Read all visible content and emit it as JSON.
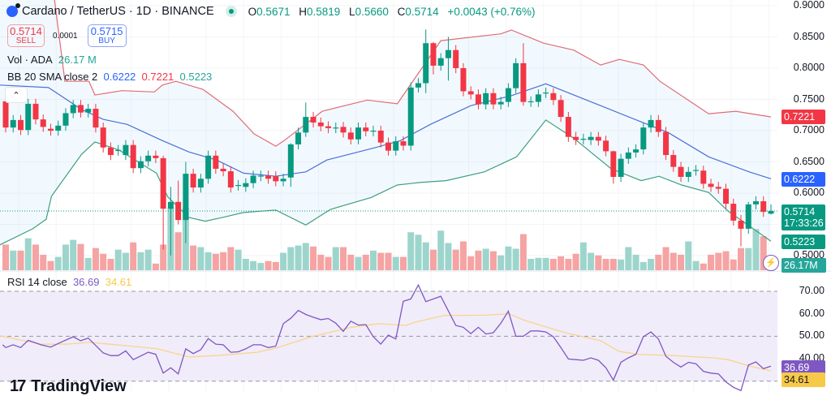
{
  "header": {
    "symbol": "Cardano / TetherUS · 1D · BINANCE",
    "ohlc": {
      "o_label": "O",
      "o": "0.5671",
      "h_label": "H",
      "h": "0.5819",
      "l_label": "L",
      "l": "0.5660",
      "c_label": "C",
      "c": "0.5714",
      "change": "+0.0043 (+0.76%)"
    }
  },
  "trade": {
    "sell_price": "0.5714",
    "sell_label": "SELL",
    "spread": "0.0001",
    "buy_price": "0.5715",
    "buy_label": "BUY"
  },
  "legend": {
    "vol_label": "Vol · ADA",
    "vol_value": "26.17 M",
    "bb_label": "BB 20 SMA close 2",
    "bb_basis": "0.6222",
    "bb_upper": "0.7221",
    "bb_lower": "0.5223",
    "rsi_label": "RSI 14 close",
    "rsi_value": "36.69",
    "rsi_ma": "34.61"
  },
  "price_axis": [
    "0.9000",
    "0.8500",
    "0.8000",
    "0.7500",
    "0.7000",
    "0.6500",
    "0.6000",
    "0.5000"
  ],
  "rsi_axis": [
    "70.00",
    "60.00",
    "50.00",
    "40.00"
  ],
  "badges": {
    "upper": "0.7221",
    "basis": "0.6222",
    "last_price": "0.5714",
    "countdown": "17:33:26",
    "lower": "0.5223",
    "volume": "26.17M",
    "rsi": "36.69",
    "rsi_ma": "34.61"
  },
  "colors": {
    "up": "#089981",
    "down": "#f23645",
    "vol_up": "#9dd5cc",
    "vol_down": "#f5a3a3",
    "bb_upper": "#e06c75",
    "bb_basis": "#4a6fd8",
    "bb_lower": "#3f9f7f",
    "rsi": "#7e57c2",
    "rsi_ma": "#f7d58a",
    "rsi_bg": "#f1ecfa"
  },
  "brand": "TradingView",
  "chart_data": {
    "type": "candlestick",
    "price_range": [
      0.48,
      0.9
    ],
    "candles_oc": [
      [
        0.747,
        0.705
      ],
      [
        0.705,
        0.717
      ],
      [
        0.717,
        0.701
      ],
      [
        0.701,
        0.743
      ],
      [
        0.743,
        0.718
      ],
      [
        0.718,
        0.706
      ],
      [
        0.703,
        0.7
      ],
      [
        0.7,
        0.708
      ],
      [
        0.708,
        0.728
      ],
      [
        0.728,
        0.741
      ],
      [
        0.741,
        0.729
      ],
      [
        0.729,
        0.735
      ],
      [
        0.735,
        0.705
      ],
      [
        0.705,
        0.673
      ],
      [
        0.673,
        0.661
      ],
      [
        0.668,
        0.669
      ],
      [
        0.661,
        0.677
      ],
      [
        0.677,
        0.64
      ],
      [
        0.64,
        0.651
      ],
      [
        0.651,
        0.66
      ],
      [
        0.66,
        0.656
      ],
      [
        0.656,
        0.575
      ],
      [
        0.575,
        0.586
      ],
      [
        0.586,
        0.557
      ],
      [
        0.557,
        0.631
      ],
      [
        0.631,
        0.609
      ],
      [
        0.609,
        0.623
      ],
      [
        0.623,
        0.66
      ],
      [
        0.66,
        0.639
      ],
      [
        0.639,
        0.635
      ],
      [
        0.635,
        0.609
      ],
      [
        0.612,
        0.613
      ],
      [
        0.61,
        0.616
      ],
      [
        0.616,
        0.628
      ],
      [
        0.627,
        0.628
      ],
      [
        0.628,
        0.623
      ],
      [
        0.627,
        0.619
      ],
      [
        0.619,
        0.623
      ],
      [
        0.625,
        0.678
      ],
      [
        0.678,
        0.697
      ],
      [
        0.697,
        0.722
      ],
      [
        0.722,
        0.713
      ],
      [
        0.713,
        0.707
      ],
      [
        0.707,
        0.704
      ],
      [
        0.704,
        0.705
      ],
      [
        0.706,
        0.697
      ],
      [
        0.697,
        0.686
      ],
      [
        0.686,
        0.705
      ],
      [
        0.705,
        0.699
      ],
      [
        0.699,
        0.7
      ],
      [
        0.7,
        0.681
      ],
      [
        0.681,
        0.668
      ],
      [
        0.668,
        0.683
      ],
      [
        0.683,
        0.676
      ],
      [
        0.676,
        0.769
      ],
      [
        0.769,
        0.776
      ],
      [
        0.776,
        0.84
      ],
      [
        0.84,
        0.804
      ],
      [
        0.804,
        0.816
      ],
      [
        0.816,
        0.829
      ],
      [
        0.829,
        0.8
      ],
      [
        0.8,
        0.763
      ],
      [
        0.763,
        0.758
      ],
      [
        0.758,
        0.742
      ],
      [
        0.742,
        0.76
      ],
      [
        0.76,
        0.742
      ],
      [
        0.742,
        0.746
      ],
      [
        0.746,
        0.768
      ],
      [
        0.768,
        0.808
      ],
      [
        0.808,
        0.746
      ],
      [
        0.746,
        0.747
      ],
      [
        0.746,
        0.758
      ],
      [
        0.76,
        0.761
      ],
      [
        0.76,
        0.749
      ],
      [
        0.749,
        0.722
      ],
      [
        0.722,
        0.69
      ],
      [
        0.69,
        0.685
      ],
      [
        0.686,
        0.687
      ],
      [
        0.685,
        0.69
      ],
      [
        0.69,
        0.684
      ],
      [
        0.684,
        0.667
      ],
      [
        0.667,
        0.626
      ],
      [
        0.626,
        0.655
      ],
      [
        0.655,
        0.665
      ],
      [
        0.665,
        0.67
      ],
      [
        0.67,
        0.705
      ],
      [
        0.705,
        0.717
      ],
      [
        0.717,
        0.698
      ],
      [
        0.698,
        0.661
      ],
      [
        0.661,
        0.642
      ],
      [
        0.642,
        0.626
      ],
      [
        0.626,
        0.634
      ],
      [
        0.636,
        0.637
      ],
      [
        0.636,
        0.615
      ],
      [
        0.615,
        0.61
      ],
      [
        0.61,
        0.607
      ],
      [
        0.607,
        0.583
      ],
      [
        0.583,
        0.556
      ],
      [
        0.556,
        0.543
      ],
      [
        0.543,
        0.582
      ],
      [
        0.582,
        0.587
      ],
      [
        0.587,
        0.57
      ],
      [
        0.5671,
        0.5714
      ]
    ],
    "wick_overrides": {
      "21": [
        0.66,
        0.51
      ],
      "22": [
        0.61,
        0.5
      ],
      "23": [
        0.62,
        0.55
      ],
      "24": [
        0.65,
        0.52
      ],
      "38": [
        0.68,
        0.61
      ],
      "40": [
        0.745,
        0.69
      ],
      "56": [
        0.862,
        0.76
      ],
      "57": [
        0.842,
        0.79
      ],
      "59": [
        0.85,
        0.78
      ],
      "69": [
        0.84,
        0.74
      ],
      "81": [
        0.668,
        0.615
      ],
      "98": [
        0.565,
        0.515
      ],
      "99": [
        0.586,
        0.535
      ],
      "102": [
        0.5819,
        0.566
      ]
    },
    "volume_m": [
      81,
      62,
      62,
      101,
      81,
      49,
      29,
      42,
      81,
      96,
      83,
      39,
      70,
      52,
      36,
      65,
      55,
      88,
      57,
      65,
      21,
      81,
      198,
      120,
      198,
      78,
      73,
      57,
      52,
      57,
      73,
      65,
      36,
      29,
      23,
      29,
      26,
      55,
      73,
      78,
      86,
      75,
      49,
      42,
      73,
      73,
      49,
      42,
      49,
      62,
      55,
      55,
      42,
      42,
      120,
      112,
      88,
      65,
      125,
      86,
      65,
      91,
      44,
      62,
      68,
      60,
      47,
      75,
      68,
      114,
      36,
      39,
      39,
      36,
      44,
      36,
      52,
      88,
      55,
      47,
      36,
      36,
      34,
      73,
      49,
      26,
      36,
      49,
      73,
      55,
      49,
      91,
      29,
      21,
      49,
      55,
      60,
      34,
      70,
      70,
      130,
      107,
      26.17
    ],
    "bb_upper": [
      [
        5.7,
        0.95
      ],
      [
        6.5,
        0.91
      ],
      [
        7.9,
        0.779
      ],
      [
        11.1,
        0.779
      ],
      [
        11.9,
        0.757
      ],
      [
        15.5,
        0.764
      ],
      [
        19.8,
        0.762
      ],
      [
        20.9,
        0.773
      ],
      [
        22.7,
        0.779
      ],
      [
        26.3,
        0.766
      ],
      [
        30.3,
        0.731
      ],
      [
        33.1,
        0.695
      ],
      [
        36,
        0.675
      ],
      [
        37.1,
        0.684
      ],
      [
        42.2,
        0.731
      ],
      [
        48.2,
        0.749
      ],
      [
        52.2,
        0.743
      ],
      [
        58,
        0.844
      ],
      [
        66,
        0.855
      ],
      [
        67.4,
        0.861
      ],
      [
        71.7,
        0.84
      ],
      [
        75.7,
        0.829
      ],
      [
        79.3,
        0.805
      ],
      [
        81.8,
        0.814
      ],
      [
        85,
        0.805
      ],
      [
        87.2,
        0.779
      ],
      [
        93.7,
        0.727
      ],
      [
        97.3,
        0.731
      ],
      [
        102,
        0.722
      ]
    ],
    "bb_basis": [
      [
        -0.8,
        0.773
      ],
      [
        5.7,
        0.769
      ],
      [
        10.1,
        0.734
      ],
      [
        13,
        0.718
      ],
      [
        16.2,
        0.71
      ],
      [
        20.9,
        0.684
      ],
      [
        24.4,
        0.666
      ],
      [
        28.1,
        0.653
      ],
      [
        31.7,
        0.632
      ],
      [
        36,
        0.627
      ],
      [
        40,
        0.634
      ],
      [
        42.8,
        0.653
      ],
      [
        49.3,
        0.673
      ],
      [
        52.6,
        0.684
      ],
      [
        56.6,
        0.71
      ],
      [
        62,
        0.74
      ],
      [
        67.4,
        0.756
      ],
      [
        72,
        0.775
      ],
      [
        79.3,
        0.74
      ],
      [
        84.7,
        0.714
      ],
      [
        88.3,
        0.697
      ],
      [
        93.7,
        0.658
      ],
      [
        99.1,
        0.634
      ],
      [
        102,
        0.623
      ]
    ],
    "bb_lower": [
      [
        -0.8,
        0.517
      ],
      [
        3.6,
        0.543
      ],
      [
        5.4,
        0.558
      ],
      [
        6.1,
        0.595
      ],
      [
        10.1,
        0.662
      ],
      [
        11.9,
        0.682
      ],
      [
        15.1,
        0.669
      ],
      [
        20.1,
        0.632
      ],
      [
        21.6,
        0.594
      ],
      [
        24.4,
        0.561
      ],
      [
        26.6,
        0.555
      ],
      [
        29.2,
        0.562
      ],
      [
        31.7,
        0.569
      ],
      [
        36,
        0.573
      ],
      [
        40,
        0.549
      ],
      [
        43.3,
        0.574
      ],
      [
        48.7,
        0.593
      ],
      [
        52.2,
        0.613
      ],
      [
        55.2,
        0.617
      ],
      [
        58.7,
        0.62
      ],
      [
        63.8,
        0.634
      ],
      [
        68.1,
        0.658
      ],
      [
        72,
        0.717
      ],
      [
        75.7,
        0.688
      ],
      [
        80.7,
        0.639
      ],
      [
        84.7,
        0.62
      ],
      [
        87.1,
        0.627
      ],
      [
        90.1,
        0.613
      ],
      [
        93.7,
        0.601
      ],
      [
        96.3,
        0.571
      ],
      [
        102,
        0.523
      ]
    ],
    "rsi": [
      [
        -0.4,
        46.2
      ],
      [
        0,
        45.0
      ],
      [
        1,
        46.2
      ],
      [
        2,
        45.0
      ],
      [
        3,
        48.2
      ],
      [
        4.7,
        46.2
      ],
      [
        6,
        45.2
      ],
      [
        7,
        46.8
      ],
      [
        9,
        49.8
      ],
      [
        10,
        48.0
      ],
      [
        11,
        49.2
      ],
      [
        13,
        42.6
      ],
      [
        14,
        41.4
      ],
      [
        15,
        41.4
      ],
      [
        16,
        43.5
      ],
      [
        17,
        39.6
      ],
      [
        19,
        42.9
      ],
      [
        20,
        42.0
      ],
      [
        21,
        33.6
      ],
      [
        22,
        36.0
      ],
      [
        23,
        33.3
      ],
      [
        24,
        44.4
      ],
      [
        25,
        42.3
      ],
      [
        26,
        44.0
      ],
      [
        27,
        49.0
      ],
      [
        28,
        46.5
      ],
      [
        29,
        46.2
      ],
      [
        30,
        42.9
      ],
      [
        31,
        43.1
      ],
      [
        32,
        44.4
      ],
      [
        33,
        46.2
      ],
      [
        34,
        46.2
      ],
      [
        35,
        45.0
      ],
      [
        36,
        45.6
      ],
      [
        37,
        55.6
      ],
      [
        38,
        58.0
      ],
      [
        39,
        61.5
      ],
      [
        40,
        59.7
      ],
      [
        41,
        58.5
      ],
      [
        42,
        57.4
      ],
      [
        43,
        57.9
      ],
      [
        44,
        55.8
      ],
      [
        45,
        52.2
      ],
      [
        46,
        56.7
      ],
      [
        47,
        55.0
      ],
      [
        48,
        55.2
      ],
      [
        49,
        49.8
      ],
      [
        50,
        46.5
      ],
      [
        51,
        50.5
      ],
      [
        52,
        48.8
      ],
      [
        53,
        65.6
      ],
      [
        54,
        66.6
      ],
      [
        55,
        72.8
      ],
      [
        56,
        65.4
      ],
      [
        58,
        67.8
      ],
      [
        60,
        54.8
      ],
      [
        61,
        54.0
      ],
      [
        62,
        51.2
      ],
      [
        63,
        54.0
      ],
      [
        64,
        51.0
      ],
      [
        65,
        51.6
      ],
      [
        66,
        55.8
      ],
      [
        67,
        61.2
      ],
      [
        68,
        50.0
      ],
      [
        69,
        50.0
      ],
      [
        70,
        52.4
      ],
      [
        71,
        52.4
      ],
      [
        72,
        51.9
      ],
      [
        73,
        49.8
      ],
      [
        74,
        45.0
      ],
      [
        75,
        39.9
      ],
      [
        76,
        39.6
      ],
      [
        77,
        39.3
      ],
      [
        78,
        40.4
      ],
      [
        79,
        39.3
      ],
      [
        80,
        36.0
      ],
      [
        81,
        30.5
      ],
      [
        82,
        38.4
      ],
      [
        83,
        40.4
      ],
      [
        84,
        42.0
      ],
      [
        85,
        49.8
      ],
      [
        86,
        51.9
      ],
      [
        87,
        48.8
      ],
      [
        88,
        41.1
      ],
      [
        89,
        38.4
      ],
      [
        90,
        36.3
      ],
      [
        91,
        38.4
      ],
      [
        92,
        37.8
      ],
      [
        93,
        34.4
      ],
      [
        94,
        33.6
      ],
      [
        95,
        33.3
      ],
      [
        96,
        29.7
      ],
      [
        97,
        27.3
      ],
      [
        98,
        25.8
      ],
      [
        99,
        37.2
      ],
      [
        100,
        38.6
      ],
      [
        101,
        35.6
      ],
      [
        102,
        36.69
      ]
    ],
    "rsi_ma": [
      [
        -0.8,
        50.2
      ],
      [
        4.7,
        46.5
      ],
      [
        8.2,
        46.5
      ],
      [
        11.1,
        47.3
      ],
      [
        15.5,
        46.0
      ],
      [
        20.1,
        44.5
      ],
      [
        24.4,
        40.8
      ],
      [
        28.1,
        41.4
      ],
      [
        33.5,
        42.9
      ],
      [
        36.3,
        45.0
      ],
      [
        40.7,
        49.8
      ],
      [
        46.1,
        54.0
      ],
      [
        49.8,
        55.6
      ],
      [
        53.3,
        54.8
      ],
      [
        54.7,
        56.4
      ],
      [
        58.4,
        59.2
      ],
      [
        63.8,
        59.4
      ],
      [
        67.1,
        60.0
      ],
      [
        69.2,
        57.0
      ],
      [
        74.6,
        51.6
      ],
      [
        79.3,
        48.0
      ],
      [
        81.8,
        43.2
      ],
      [
        84.4,
        42.0
      ],
      [
        89,
        41.4
      ],
      [
        94.4,
        40.4
      ],
      [
        96.3,
        39.6
      ],
      [
        99.1,
        36.8
      ],
      [
        102,
        34.61
      ]
    ],
    "rsi_range": [
      25,
      72
    ],
    "rsi_levels": [
      70,
      50,
      30
    ]
  }
}
